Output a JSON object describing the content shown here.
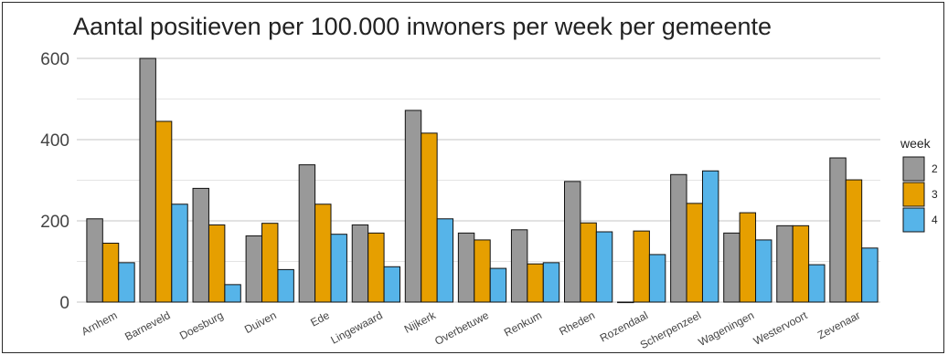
{
  "chart_data": {
    "type": "bar",
    "title": "Aantal positieven per 100.000 inwoners per week per gemeente",
    "xlabel": "",
    "ylabel": "",
    "ylim": [
      0,
      600
    ],
    "yticks": [
      0,
      200,
      400,
      600
    ],
    "grid": true,
    "legend": {
      "title": "week",
      "placement": "right"
    },
    "categories": [
      "Arnhem",
      "Barneveld",
      "Doesburg",
      "Duiven",
      "Ede",
      "Lingewaard",
      "Nijkerk",
      "Overbetuwe",
      "Renkum",
      "Rheden",
      "Rozendaal",
      "Scherpenzeel",
      "Wageningen",
      "Westervoort",
      "Zevenaar"
    ],
    "series": [
      {
        "name": "2",
        "color": "#999999",
        "values": [
          205,
          600,
          280,
          163,
          338,
          190,
          472,
          170,
          178,
          297,
          0,
          314,
          170,
          188,
          355
        ]
      },
      {
        "name": "3",
        "color": "#E69F00",
        "values": [
          145,
          445,
          190,
          194,
          241,
          170,
          416,
          153,
          94,
          195,
          175,
          243,
          220,
          188,
          301
        ]
      },
      {
        "name": "4",
        "color": "#56B4E9",
        "values": [
          97,
          241,
          43,
          80,
          167,
          87,
          205,
          83,
          97,
          173,
          117,
          323,
          153,
          92,
          133
        ]
      }
    ]
  }
}
